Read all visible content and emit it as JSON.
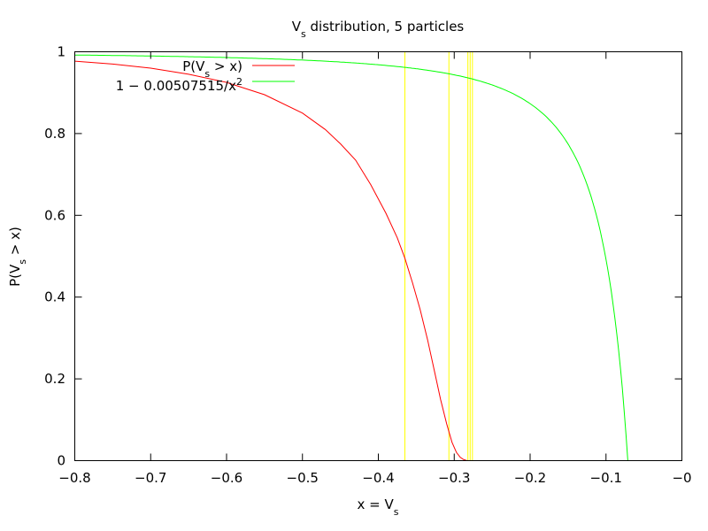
{
  "chart_data": {
    "type": "line",
    "title": "V",
    "title_sub": "s",
    "title_rest": " distribution, 5 particles",
    "xlabel": "x = V",
    "xlabel_sub": "s",
    "ylabel": "P(V",
    "ylabel_sub": "s",
    "ylabel_rest": " > x)",
    "xlim": [
      -0.8,
      0
    ],
    "ylim": [
      0,
      1
    ],
    "xticks": [
      "-0.8",
      "-0.7",
      "-0.6",
      "-0.5",
      "-0.4",
      "-0.3",
      "-0.2",
      "-0.1",
      "-0"
    ],
    "xtick_values": [
      -0.8,
      -0.7,
      -0.6,
      -0.5,
      -0.4,
      -0.3,
      -0.2,
      -0.1,
      0
    ],
    "yticks": [
      "0",
      "0.2",
      "0.4",
      "0.6",
      "0.8",
      "1"
    ],
    "ytick_values": [
      0,
      0.2,
      0.4,
      0.6,
      0.8,
      1
    ],
    "legend_position": "top-left",
    "series": [
      {
        "name": "P(V",
        "name_sub": "s",
        "name_rest": " > x)",
        "color": "#ff0000",
        "x": [
          -0.8,
          -0.75,
          -0.7,
          -0.65,
          -0.6,
          -0.55,
          -0.5,
          -0.47,
          -0.45,
          -0.43,
          -0.41,
          -0.39,
          -0.375,
          -0.365,
          -0.355,
          -0.345,
          -0.335,
          -0.325,
          -0.318,
          -0.31,
          -0.303,
          -0.297,
          -0.292,
          -0.288,
          -0.285,
          -0.283
        ],
        "y": [
          0.977,
          0.97,
          0.96,
          0.945,
          0.925,
          0.895,
          0.85,
          0.81,
          0.775,
          0.735,
          0.675,
          0.605,
          0.545,
          0.495,
          0.435,
          0.37,
          0.295,
          0.21,
          0.15,
          0.09,
          0.045,
          0.02,
          0.008,
          0.003,
          0.001,
          0
        ]
      },
      {
        "name": "1 − 0.00507515/x",
        "name_sup": "2",
        "color": "#00ff00",
        "formula_coeff": 0.00507515
      }
    ],
    "vertical_lines": {
      "color": "#ffff00",
      "x": [
        -0.365,
        -0.307,
        -0.282,
        -0.279,
        -0.276
      ]
    }
  }
}
